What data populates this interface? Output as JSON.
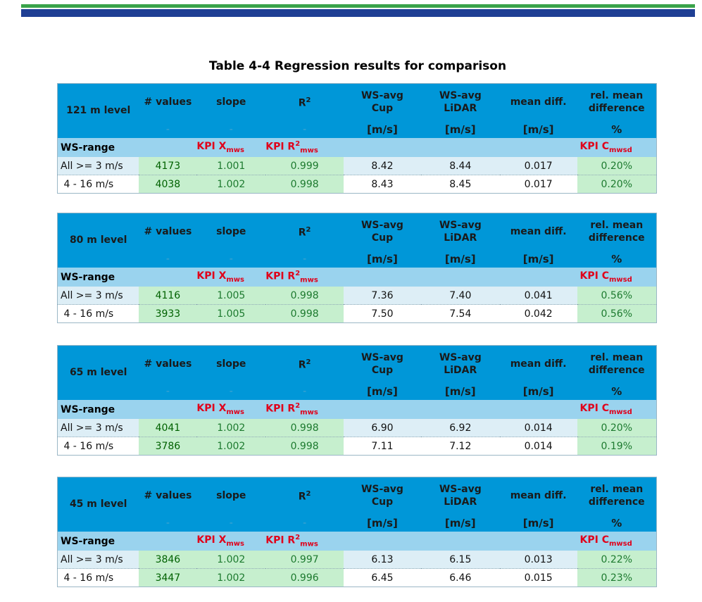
{
  "caption": "Table 4-4 Regression results for comparison",
  "headers": {
    "values": "# values",
    "slope": "slope",
    "r2": "R",
    "wsavg": "WS-avg",
    "cup": "Cup",
    "lidar": "LiDAR",
    "mean_diff": "mean diff.",
    "rel_mean": "rel. mean",
    "difference": "difference",
    "dash": "-",
    "unit_ms": "[m/s]",
    "unit_pct": "%",
    "ws_range": "WS-range",
    "kpi": "KPI ",
    "kpi_x": "X",
    "kpi_r": "R",
    "kpi_c": "C",
    "sub_mws": "mws",
    "sub_mwsd": "mwsd",
    "sup2": "2"
  },
  "tables": [
    {
      "level": "121 m level",
      "rows": [
        {
          "range": "All >= 3 m/s",
          "n": "4173",
          "slope": "1.001",
          "r2": "0.999",
          "cup": "8.42",
          "lidar": "8.44",
          "diff": "0.017",
          "rel": "0.20%"
        },
        {
          "range": " 4 - 16 m/s",
          "n": "4038",
          "slope": "1.002",
          "r2": "0.998",
          "cup": "8.43",
          "lidar": "8.45",
          "diff": "0.017",
          "rel": "0.20%"
        }
      ]
    },
    {
      "level": "80 m level",
      "rows": [
        {
          "range": "All >= 3 m/s",
          "n": "4116",
          "slope": "1.005",
          "r2": "0.998",
          "cup": "7.36",
          "lidar": "7.40",
          "diff": "0.041",
          "rel": "0.56%"
        },
        {
          "range": " 4 - 16 m/s",
          "n": "3933",
          "slope": "1.005",
          "r2": "0.998",
          "cup": "7.50",
          "lidar": "7.54",
          "diff": "0.042",
          "rel": "0.56%"
        }
      ]
    },
    {
      "level": "65 m level",
      "rows": [
        {
          "range": "All >= 3 m/s",
          "n": "4041",
          "slope": "1.002",
          "r2": "0.998",
          "cup": "6.90",
          "lidar": "6.92",
          "diff": "0.014",
          "rel": "0.20%"
        },
        {
          "range": " 4 - 16 m/s",
          "n": "3786",
          "slope": "1.002",
          "r2": "0.998",
          "cup": "7.11",
          "lidar": "7.12",
          "diff": "0.014",
          "rel": "0.19%"
        }
      ]
    },
    {
      "level": "45 m level",
      "rows": [
        {
          "range": "All >= 3 m/s",
          "n": "3846",
          "slope": "1.002",
          "r2": "0.997",
          "cup": "6.13",
          "lidar": "6.15",
          "diff": "0.013",
          "rel": "0.22%"
        },
        {
          "range": " 4 - 16 m/s",
          "n": "3447",
          "slope": "1.002",
          "r2": "0.996",
          "cup": "6.45",
          "lidar": "6.46",
          "diff": "0.015",
          "rel": "0.23%"
        }
      ]
    }
  ]
}
